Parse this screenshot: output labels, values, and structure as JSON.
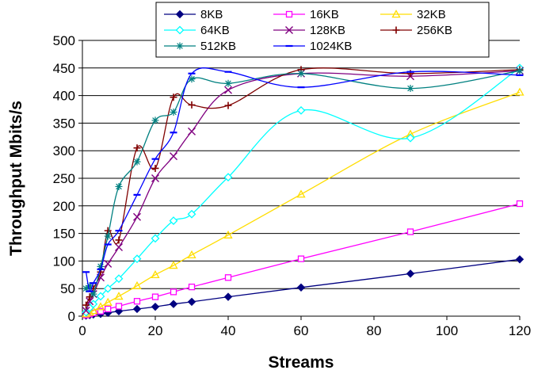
{
  "chart_data": {
    "type": "line",
    "xlabel": "Streams",
    "ylabel": "Throughput Mbits/s",
    "xlim": [
      0,
      120
    ],
    "ylim": [
      0,
      500
    ],
    "x_ticks": [
      0,
      20,
      40,
      60,
      80,
      100,
      120
    ],
    "y_ticks": [
      0,
      50,
      100,
      150,
      200,
      250,
      300,
      350,
      400,
      450,
      500
    ],
    "grid": "horizontal",
    "legend_position": "top",
    "series": [
      {
        "name": "8KB",
        "color": "#000080",
        "marker": "diamond-filled",
        "x": [
          1,
          2,
          3,
          5,
          7,
          10,
          15,
          20,
          25,
          30,
          40,
          60,
          90,
          120
        ],
        "y": [
          1,
          2,
          3,
          4,
          6,
          9,
          13,
          17,
          22,
          26,
          35,
          52,
          77,
          103
        ]
      },
      {
        "name": "16KB",
        "color": "#ff00ff",
        "marker": "square-open",
        "x": [
          1,
          2,
          3,
          5,
          7,
          10,
          15,
          20,
          25,
          30,
          40,
          60,
          90,
          120
        ],
        "y": [
          2,
          4,
          6,
          9,
          13,
          18,
          27,
          35,
          44,
          53,
          70,
          104,
          153,
          204
        ]
      },
      {
        "name": "32KB",
        "color": "#ffdd00",
        "marker": "triangle-open",
        "x": [
          1,
          2,
          3,
          5,
          7,
          10,
          15,
          20,
          25,
          30,
          40,
          60,
          90,
          120
        ],
        "y": [
          4,
          7,
          10,
          17,
          25,
          36,
          55,
          75,
          92,
          111,
          147,
          221,
          330,
          406
        ]
      },
      {
        "name": "64KB",
        "color": "#00ffff",
        "marker": "diamond-open",
        "x": [
          1,
          2,
          3,
          5,
          7,
          10,
          15,
          20,
          25,
          30,
          40,
          60,
          90,
          120
        ],
        "y": [
          7,
          15,
          22,
          36,
          50,
          68,
          104,
          141,
          173,
          185,
          252,
          373,
          323,
          450
        ]
      },
      {
        "name": "128KB",
        "color": "#800080",
        "marker": "x",
        "x": [
          1,
          2,
          3,
          5,
          7,
          10,
          15,
          20,
          25,
          30,
          40,
          60,
          90,
          120
        ],
        "y": [
          10,
          27,
          40,
          70,
          95,
          125,
          180,
          250,
          290,
          335,
          410,
          440,
          435,
          445
        ]
      },
      {
        "name": "256KB",
        "color": "#800000",
        "marker": "plus",
        "x": [
          1,
          2,
          3,
          5,
          7,
          10,
          15,
          20,
          25,
          30,
          40,
          60,
          90,
          120
        ],
        "y": [
          20,
          35,
          50,
          80,
          155,
          138,
          305,
          268,
          397,
          383,
          382,
          447,
          440,
          447
        ]
      },
      {
        "name": "512KB",
        "color": "#008080",
        "marker": "star",
        "x": [
          1,
          2,
          3,
          5,
          7,
          10,
          15,
          20,
          25,
          30,
          40,
          60,
          90,
          120
        ],
        "y": [
          50,
          55,
          40,
          90,
          145,
          235,
          280,
          355,
          370,
          430,
          422,
          440,
          413,
          445
        ]
      },
      {
        "name": "1024KB",
        "color": "#0000ff",
        "marker": "dash",
        "x": [
          1,
          2,
          3,
          5,
          7,
          10,
          15,
          20,
          25,
          30,
          40,
          60,
          90,
          120
        ],
        "y": [
          80,
          45,
          60,
          85,
          130,
          155,
          220,
          285,
          333,
          440,
          443,
          415,
          443,
          437
        ]
      }
    ]
  }
}
